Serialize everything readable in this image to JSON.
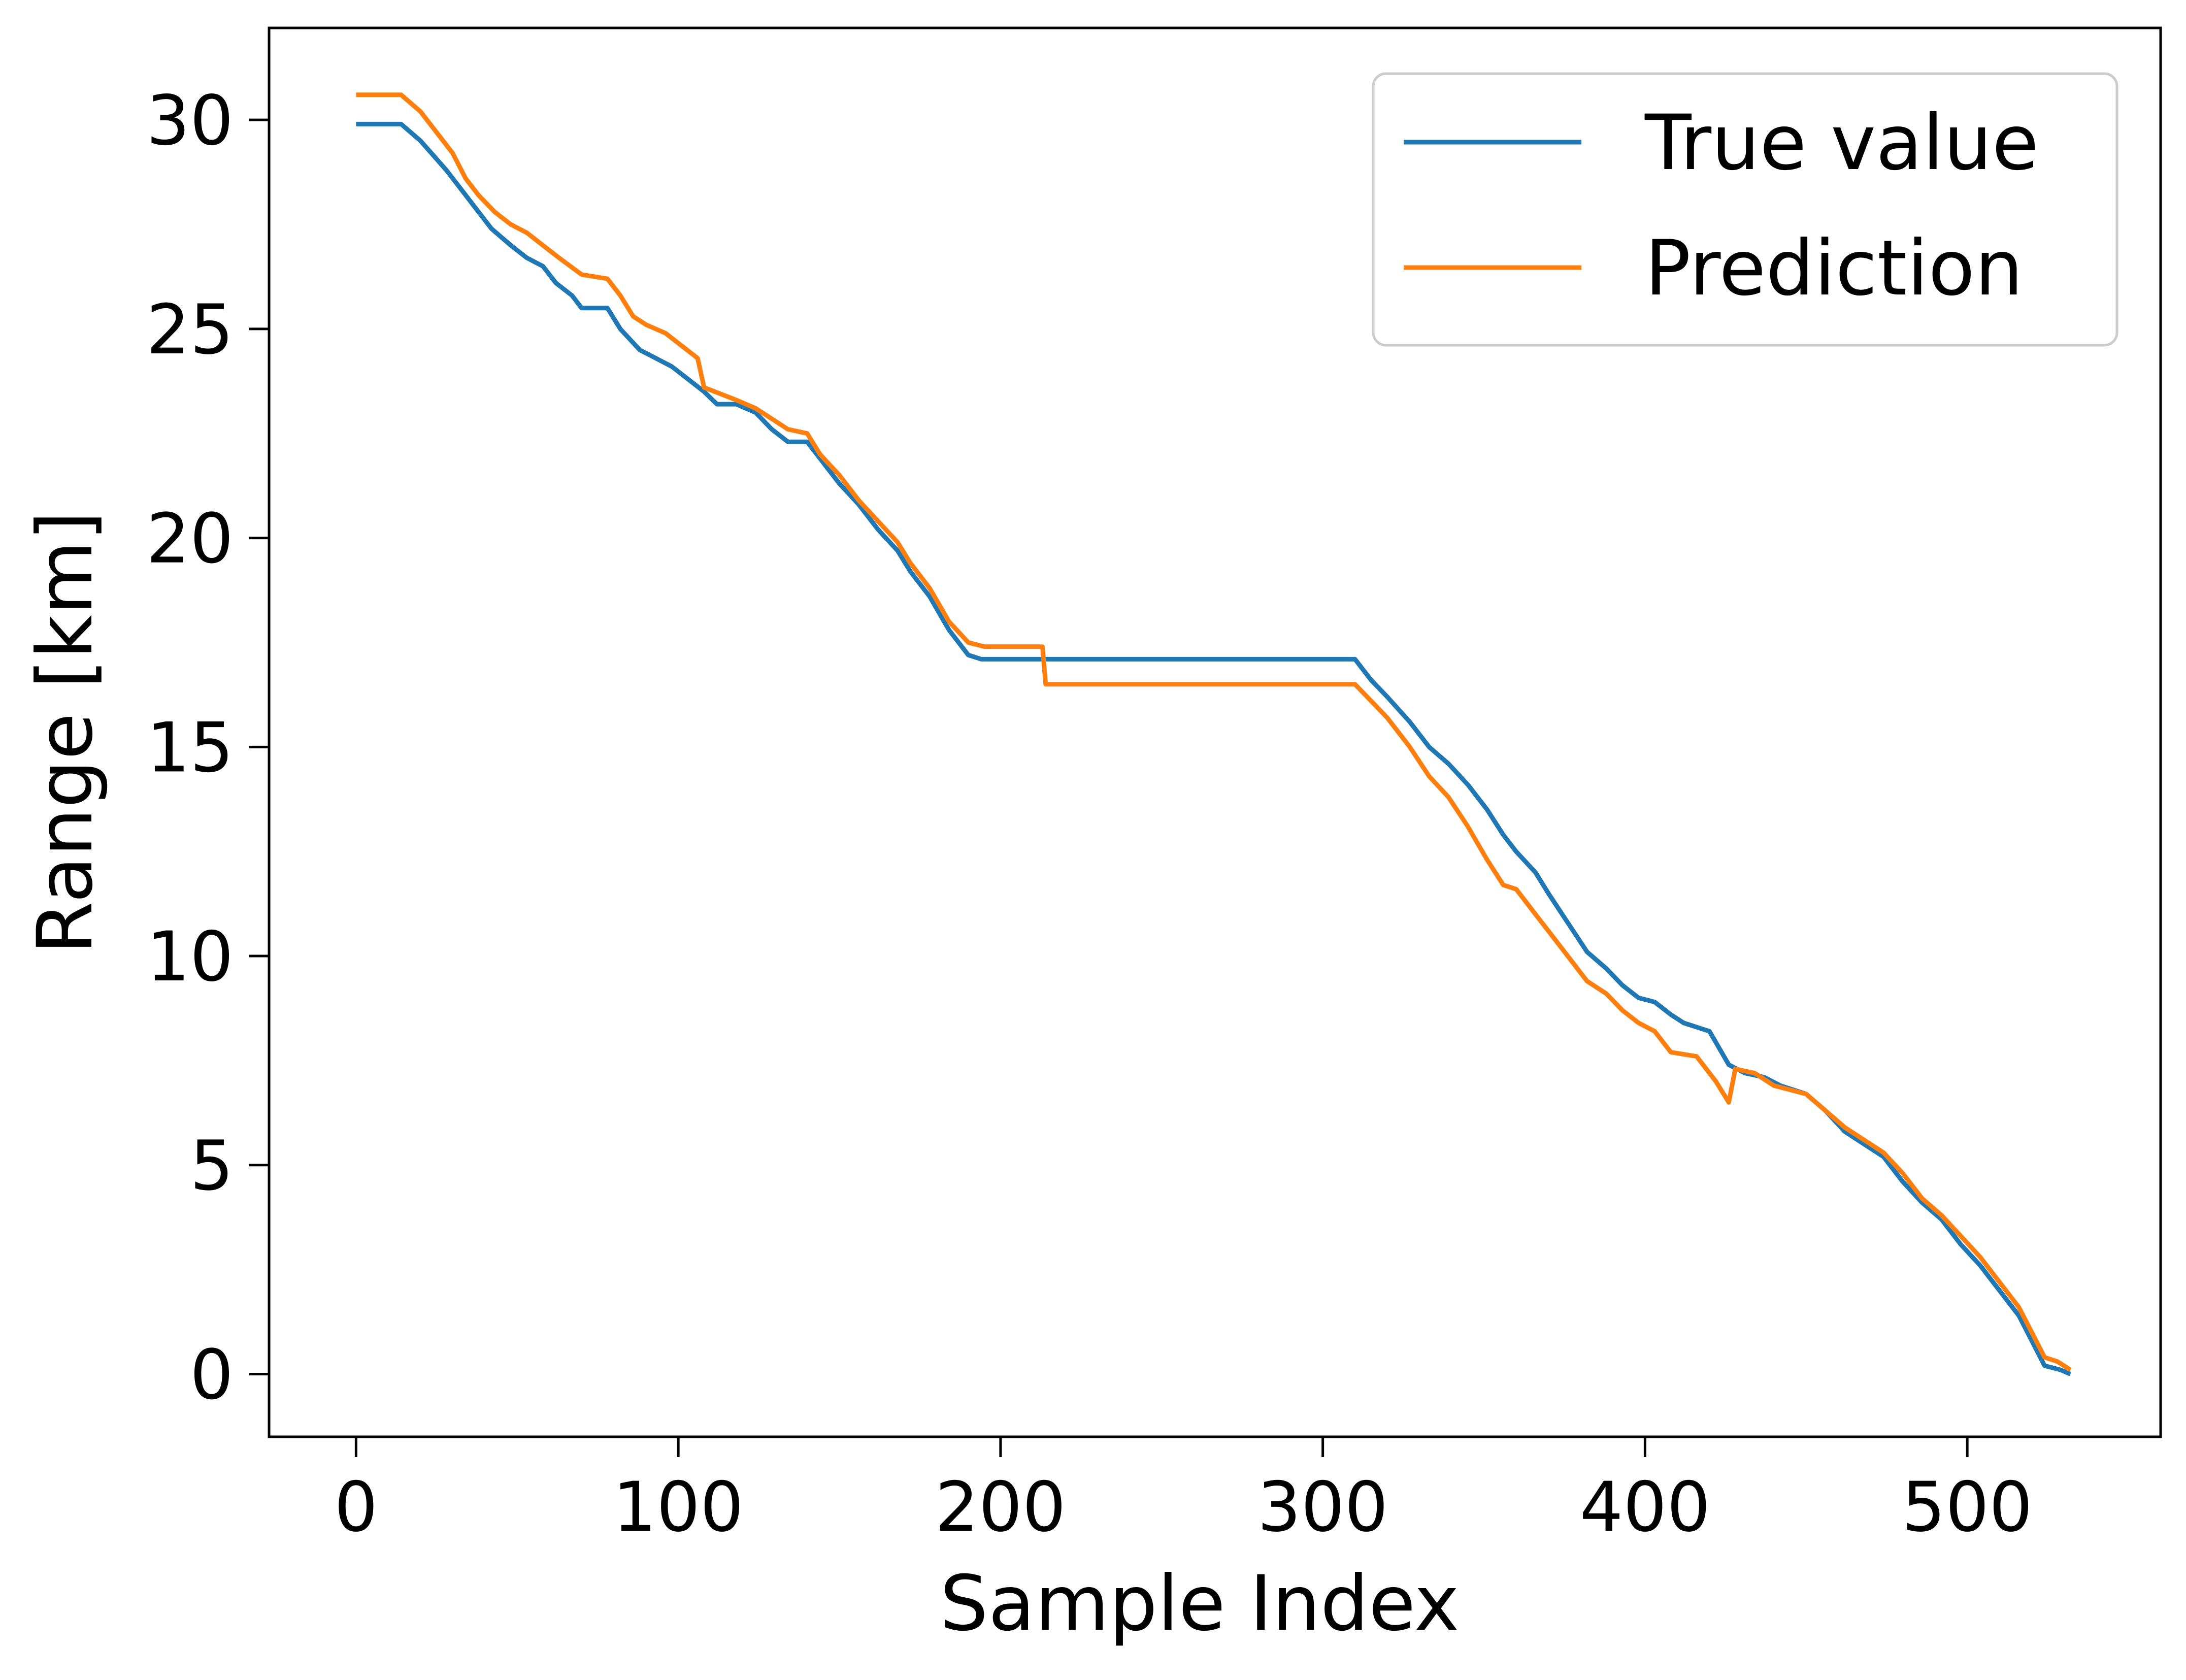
{
  "chart_data": {
    "type": "line",
    "title": "",
    "xlabel": "Sample Index",
    "ylabel": "Range  [km]",
    "xlim": [
      -27,
      560
    ],
    "ylim": [
      -1.5,
      32.2
    ],
    "xticks": [
      0,
      100,
      200,
      300,
      400,
      500
    ],
    "yticks": [
      0,
      5,
      10,
      15,
      20,
      25,
      30
    ],
    "grid": false,
    "legend": "top-right",
    "series": [
      {
        "name": "True value",
        "color": "#1f77b4",
        "points": [
          [
            0,
            29.9
          ],
          [
            14,
            29.9
          ],
          [
            20,
            29.5
          ],
          [
            28,
            28.8
          ],
          [
            33,
            28.3
          ],
          [
            37,
            27.9
          ],
          [
            42,
            27.4
          ],
          [
            48,
            27.0
          ],
          [
            53,
            26.7
          ],
          [
            58,
            26.5
          ],
          [
            62,
            26.1
          ],
          [
            67,
            25.8
          ],
          [
            70,
            25.5
          ],
          [
            78,
            25.5
          ],
          [
            82,
            25.0
          ],
          [
            88,
            24.5
          ],
          [
            93,
            24.3
          ],
          [
            98,
            24.1
          ],
          [
            103,
            23.8
          ],
          [
            108,
            23.5
          ],
          [
            112,
            23.2
          ],
          [
            118,
            23.2
          ],
          [
            124,
            23.0
          ],
          [
            129,
            22.6
          ],
          [
            134,
            22.3
          ],
          [
            140,
            22.3
          ],
          [
            144,
            21.9
          ],
          [
            150,
            21.3
          ],
          [
            156,
            20.8
          ],
          [
            162,
            20.2
          ],
          [
            168,
            19.7
          ],
          [
            172,
            19.2
          ],
          [
            178,
            18.6
          ],
          [
            184,
            17.8
          ],
          [
            190,
            17.2
          ],
          [
            194,
            17.1
          ],
          [
            310,
            17.1
          ],
          [
            315,
            16.6
          ],
          [
            320,
            16.2
          ],
          [
            327,
            15.6
          ],
          [
            333,
            15.0
          ],
          [
            339,
            14.6
          ],
          [
            345,
            14.1
          ],
          [
            351,
            13.5
          ],
          [
            356,
            12.9
          ],
          [
            360,
            12.5
          ],
          [
            366,
            12.0
          ],
          [
            370,
            11.5
          ],
          [
            376,
            10.8
          ],
          [
            382,
            10.1
          ],
          [
            388,
            9.7
          ],
          [
            393,
            9.3
          ],
          [
            398,
            9.0
          ],
          [
            403,
            8.9
          ],
          [
            408,
            8.6
          ],
          [
            412,
            8.4
          ],
          [
            420,
            8.2
          ],
          [
            426,
            7.4
          ],
          [
            431,
            7.2
          ],
          [
            437,
            7.1
          ],
          [
            442,
            6.9
          ],
          [
            450,
            6.7
          ],
          [
            456,
            6.3
          ],
          [
            462,
            5.8
          ],
          [
            468,
            5.5
          ],
          [
            474,
            5.2
          ],
          [
            480,
            4.6
          ],
          [
            486,
            4.1
          ],
          [
            492,
            3.7
          ],
          [
            498,
            3.1
          ],
          [
            504,
            2.6
          ],
          [
            510,
            2.0
          ],
          [
            516,
            1.4
          ],
          [
            520,
            0.8
          ],
          [
            524,
            0.2
          ],
          [
            529,
            0.1
          ],
          [
            532,
            0.0
          ]
        ]
      },
      {
        "name": "Prediction",
        "color": "#ff7f0e",
        "points": [
          [
            0,
            30.6
          ],
          [
            14,
            30.6
          ],
          [
            20,
            30.2
          ],
          [
            25,
            29.7
          ],
          [
            30,
            29.2
          ],
          [
            34,
            28.6
          ],
          [
            38,
            28.2
          ],
          [
            43,
            27.8
          ],
          [
            48,
            27.5
          ],
          [
            53,
            27.3
          ],
          [
            58,
            27.0
          ],
          [
            63,
            26.7
          ],
          [
            70,
            26.3
          ],
          [
            78,
            26.2
          ],
          [
            82,
            25.8
          ],
          [
            86,
            25.3
          ],
          [
            90,
            25.1
          ],
          [
            96,
            24.9
          ],
          [
            101,
            24.6
          ],
          [
            106,
            24.3
          ],
          [
            108,
            23.6
          ],
          [
            118,
            23.3
          ],
          [
            124,
            23.1
          ],
          [
            130,
            22.8
          ],
          [
            134,
            22.6
          ],
          [
            140,
            22.5
          ],
          [
            144,
            22.0
          ],
          [
            150,
            21.5
          ],
          [
            156,
            20.9
          ],
          [
            162,
            20.4
          ],
          [
            168,
            19.9
          ],
          [
            172,
            19.4
          ],
          [
            178,
            18.8
          ],
          [
            184,
            18.0
          ],
          [
            190,
            17.5
          ],
          [
            195,
            17.4
          ],
          [
            213,
            17.4
          ],
          [
            214,
            16.5
          ],
          [
            310,
            16.5
          ],
          [
            315,
            16.1
          ],
          [
            320,
            15.7
          ],
          [
            327,
            15.0
          ],
          [
            333,
            14.3
          ],
          [
            339,
            13.8
          ],
          [
            345,
            13.1
          ],
          [
            351,
            12.3
          ],
          [
            356,
            11.7
          ],
          [
            360,
            11.6
          ],
          [
            366,
            11.0
          ],
          [
            370,
            10.6
          ],
          [
            376,
            10.0
          ],
          [
            382,
            9.4
          ],
          [
            388,
            9.1
          ],
          [
            393,
            8.7
          ],
          [
            398,
            8.4
          ],
          [
            403,
            8.2
          ],
          [
            408,
            7.7
          ],
          [
            416,
            7.6
          ],
          [
            422,
            7.0
          ],
          [
            426,
            6.5
          ],
          [
            428,
            7.3
          ],
          [
            434,
            7.2
          ],
          [
            440,
            6.9
          ],
          [
            450,
            6.7
          ],
          [
            456,
            6.3
          ],
          [
            462,
            5.9
          ],
          [
            468,
            5.6
          ],
          [
            474,
            5.3
          ],
          [
            480,
            4.8
          ],
          [
            486,
            4.2
          ],
          [
            492,
            3.8
          ],
          [
            498,
            3.3
          ],
          [
            504,
            2.8
          ],
          [
            510,
            2.2
          ],
          [
            516,
            1.6
          ],
          [
            520,
            1.0
          ],
          [
            524,
            0.4
          ],
          [
            528,
            0.3
          ],
          [
            532,
            0.1
          ]
        ]
      }
    ]
  }
}
